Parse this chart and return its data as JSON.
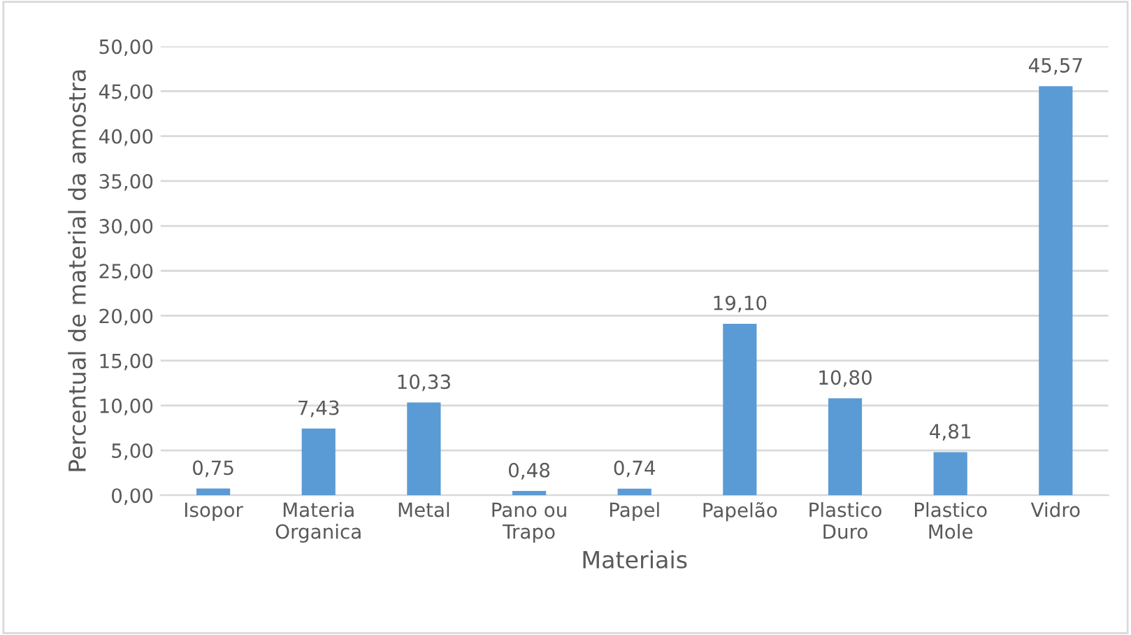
{
  "chart_data": {
    "type": "bar",
    "xlabel": "Materiais",
    "ylabel": "Percentual de material da amostra",
    "categories": [
      "Isopor",
      "Materia\nOrganica",
      "Metal",
      "Pano ou\nTrapo",
      "Papel",
      "Papelão",
      "Plastico\nDuro",
      "Plastico\nMole",
      "Vidro"
    ],
    "values": [
      0.75,
      7.43,
      10.33,
      0.48,
      0.74,
      19.1,
      10.8,
      4.81,
      45.57
    ],
    "value_labels": [
      "0,75",
      "7,43",
      "10,33",
      "0,48",
      "0,74",
      "19,10",
      "10,80",
      "4,81",
      "45,57"
    ],
    "color": "#5b9bd5",
    "ylim": [
      0,
      50
    ],
    "yticks": [
      {
        "value": 0,
        "label": "0,00"
      },
      {
        "value": 5,
        "label": "5,00"
      },
      {
        "value": 10,
        "label": "10,00"
      },
      {
        "value": 15,
        "label": "15,00"
      },
      {
        "value": 20,
        "label": "20,00"
      },
      {
        "value": 25,
        "label": "25,00"
      },
      {
        "value": 30,
        "label": "30,00"
      },
      {
        "value": 35,
        "label": "35,00"
      },
      {
        "value": 40,
        "label": "40,00"
      },
      {
        "value": 45,
        "label": "45,00"
      },
      {
        "value": 50,
        "label": "50,00"
      }
    ],
    "grid": "y",
    "legend": false
  }
}
